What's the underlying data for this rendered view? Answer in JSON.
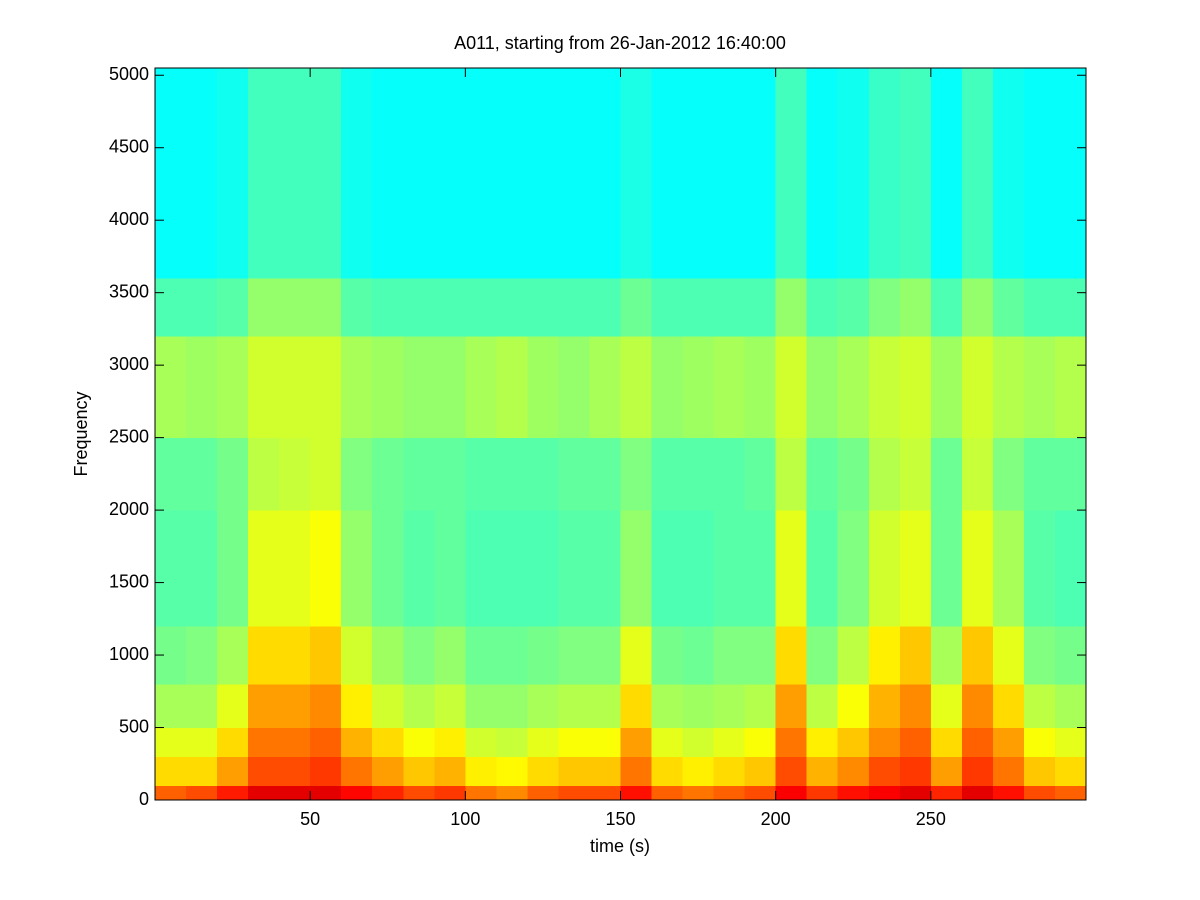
{
  "chart_data": {
    "type": "heatmap",
    "title": "A011, starting from 26-Jan-2012 16:40:00",
    "x_label": "time (s)",
    "y_label": "Frequency",
    "xlim": [
      0,
      300
    ],
    "ylim": [
      0,
      5050
    ],
    "xticks": [
      50,
      100,
      150,
      200,
      250
    ],
    "yticks": [
      0,
      500,
      1000,
      1500,
      2000,
      2500,
      3000,
      3500,
      4000,
      4500,
      5000
    ],
    "colormap": "jet",
    "clim": [
      0,
      1
    ],
    "x_bins": [
      0,
      10,
      20,
      30,
      40,
      50,
      60,
      70,
      80,
      90,
      100,
      110,
      120,
      130,
      140,
      150,
      160,
      170,
      180,
      190,
      200,
      210,
      220,
      230,
      240,
      250,
      260,
      270,
      280,
      290,
      300
    ],
    "y_bins": [
      0,
      100,
      300,
      500,
      800,
      1200,
      2000,
      2500,
      3200,
      3600,
      5050
    ],
    "values": [
      [
        0.78,
        0.8,
        0.85,
        0.9,
        0.9,
        0.9,
        0.87,
        0.84,
        0.8,
        0.82,
        0.76,
        0.74,
        0.78,
        0.8,
        0.8,
        0.86,
        0.78,
        0.76,
        0.78,
        0.8,
        0.88,
        0.82,
        0.86,
        0.88,
        0.9,
        0.84,
        0.9,
        0.86,
        0.8,
        0.78
      ],
      [
        0.66,
        0.66,
        0.72,
        0.8,
        0.8,
        0.82,
        0.76,
        0.72,
        0.68,
        0.7,
        0.64,
        0.63,
        0.66,
        0.68,
        0.68,
        0.76,
        0.66,
        0.64,
        0.66,
        0.68,
        0.8,
        0.7,
        0.74,
        0.8,
        0.82,
        0.72,
        0.82,
        0.76,
        0.68,
        0.66
      ],
      [
        0.6,
        0.6,
        0.66,
        0.76,
        0.76,
        0.78,
        0.7,
        0.66,
        0.62,
        0.64,
        0.58,
        0.57,
        0.6,
        0.62,
        0.62,
        0.72,
        0.6,
        0.58,
        0.6,
        0.62,
        0.76,
        0.64,
        0.68,
        0.74,
        0.78,
        0.66,
        0.78,
        0.72,
        0.62,
        0.6
      ],
      [
        0.54,
        0.54,
        0.6,
        0.72,
        0.72,
        0.74,
        0.64,
        0.58,
        0.55,
        0.57,
        0.52,
        0.52,
        0.54,
        0.55,
        0.55,
        0.66,
        0.54,
        0.53,
        0.54,
        0.55,
        0.72,
        0.56,
        0.62,
        0.7,
        0.74,
        0.6,
        0.74,
        0.66,
        0.56,
        0.54
      ],
      [
        0.49,
        0.5,
        0.54,
        0.66,
        0.66,
        0.68,
        0.58,
        0.53,
        0.5,
        0.52,
        0.48,
        0.48,
        0.49,
        0.5,
        0.5,
        0.6,
        0.49,
        0.48,
        0.5,
        0.5,
        0.66,
        0.5,
        0.56,
        0.64,
        0.68,
        0.54,
        0.68,
        0.6,
        0.5,
        0.49
      ],
      [
        0.46,
        0.46,
        0.49,
        0.6,
        0.6,
        0.62,
        0.52,
        0.48,
        0.46,
        0.47,
        0.45,
        0.45,
        0.45,
        0.46,
        0.46,
        0.52,
        0.45,
        0.45,
        0.46,
        0.46,
        0.6,
        0.46,
        0.5,
        0.58,
        0.6,
        0.48,
        0.6,
        0.54,
        0.46,
        0.45
      ],
      [
        0.47,
        0.47,
        0.49,
        0.56,
        0.57,
        0.58,
        0.5,
        0.48,
        0.47,
        0.47,
        0.46,
        0.46,
        0.46,
        0.47,
        0.47,
        0.5,
        0.46,
        0.46,
        0.46,
        0.47,
        0.56,
        0.47,
        0.49,
        0.55,
        0.57,
        0.48,
        0.57,
        0.5,
        0.47,
        0.47
      ],
      [
        0.54,
        0.53,
        0.54,
        0.58,
        0.58,
        0.58,
        0.54,
        0.53,
        0.52,
        0.52,
        0.54,
        0.55,
        0.53,
        0.52,
        0.54,
        0.56,
        0.52,
        0.53,
        0.54,
        0.53,
        0.58,
        0.52,
        0.54,
        0.57,
        0.58,
        0.53,
        0.58,
        0.55,
        0.54,
        0.55
      ],
      [
        0.45,
        0.45,
        0.46,
        0.52,
        0.52,
        0.52,
        0.46,
        0.45,
        0.45,
        0.45,
        0.45,
        0.45,
        0.45,
        0.45,
        0.45,
        0.48,
        0.45,
        0.45,
        0.45,
        0.45,
        0.52,
        0.45,
        0.46,
        0.5,
        0.52,
        0.45,
        0.52,
        0.47,
        0.45,
        0.45
      ],
      [
        0.38,
        0.38,
        0.39,
        0.44,
        0.44,
        0.44,
        0.39,
        0.38,
        0.38,
        0.38,
        0.38,
        0.38,
        0.38,
        0.38,
        0.38,
        0.4,
        0.38,
        0.38,
        0.38,
        0.38,
        0.44,
        0.38,
        0.39,
        0.43,
        0.44,
        0.38,
        0.44,
        0.39,
        0.38,
        0.38
      ]
    ]
  }
}
